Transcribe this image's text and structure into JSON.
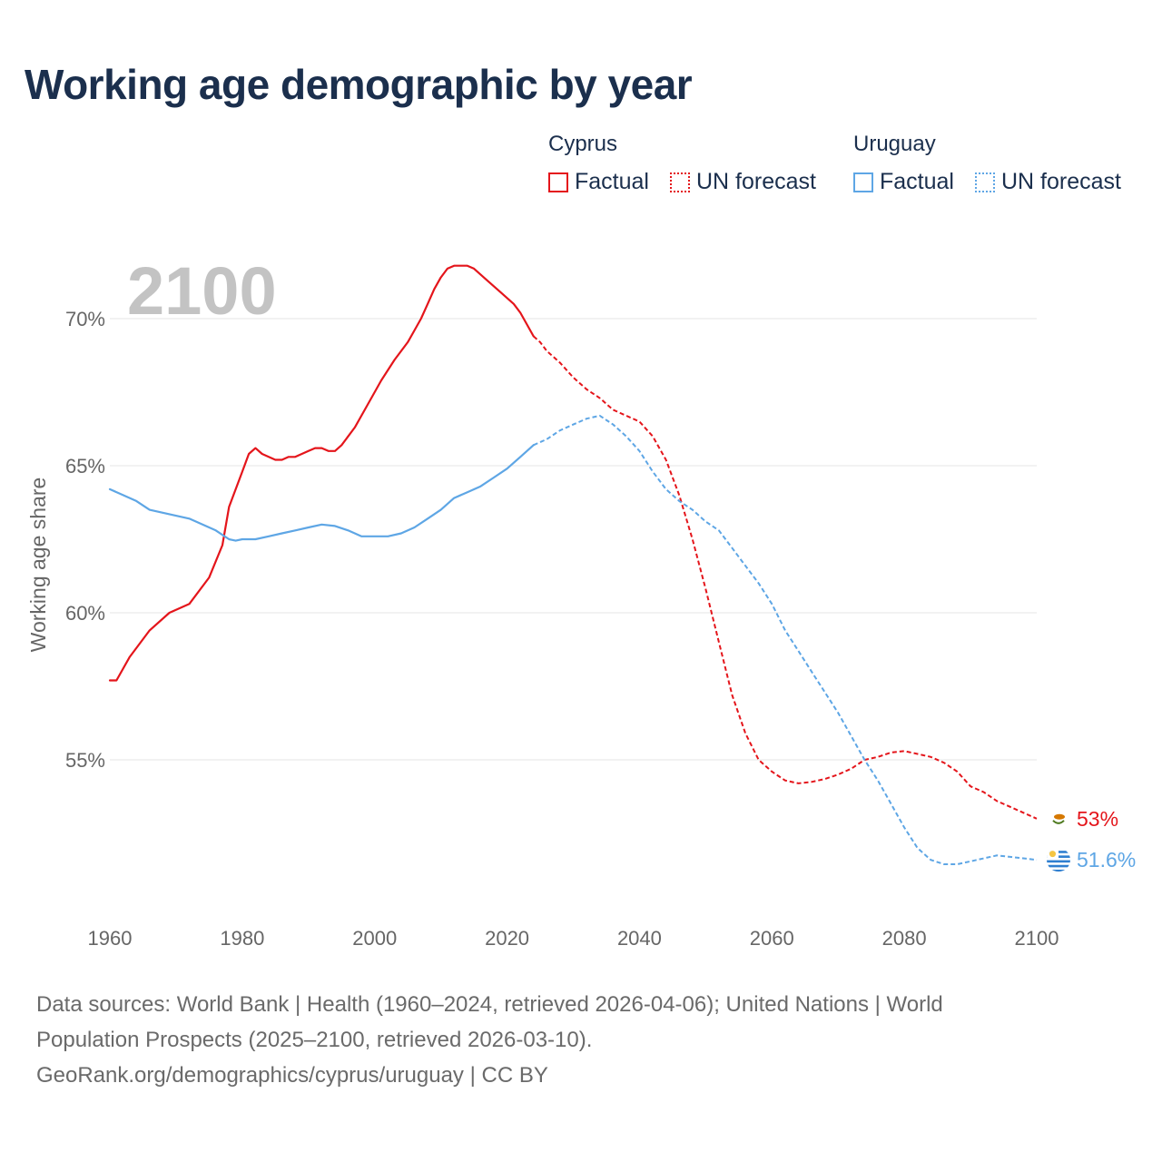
{
  "title": "Working age demographic by year",
  "year_label": "2100",
  "legend": {
    "groups": [
      {
        "country": "Cyprus",
        "factual": "Factual",
        "forecast": "UN forecast",
        "color": "#e4151b"
      },
      {
        "country": "Uruguay",
        "factual": "Factual",
        "forecast": "UN forecast",
        "color": "#5ea6e5"
      }
    ]
  },
  "footer": {
    "line1": "Data sources: World Bank | Health (1960–2024, retrieved 2026-04-06); United Nations | World",
    "line2": "Population Prospects (2025–2100, retrieved 2026-03-10).",
    "line3": "GeoRank.org/demographics/cyprus/uruguay | CC BY"
  },
  "chart_data": {
    "type": "line",
    "title": "Working age demographic by year",
    "xlabel": "",
    "ylabel": "Working age share",
    "xlim": [
      1960,
      2100
    ],
    "ylim": [
      50.5,
      72.5
    ],
    "x_ticks": [
      1960,
      1980,
      2000,
      2020,
      2040,
      2060,
      2080,
      2100
    ],
    "x_tick_labels": [
      "1960",
      "1980",
      "2000",
      "2020",
      "2040",
      "2060",
      "2080",
      "2100"
    ],
    "y_ticks": [
      55,
      60,
      65,
      70
    ],
    "y_tick_labels": [
      "55%",
      "60%",
      "65%",
      "70%"
    ],
    "grid": true,
    "forecast_start": 2024,
    "series": [
      {
        "name": "Cyprus",
        "color": "#e4151b",
        "end_label": "53%",
        "points": [
          [
            1960,
            57.7
          ],
          [
            1961,
            57.7
          ],
          [
            1963,
            58.5
          ],
          [
            1966,
            59.4
          ],
          [
            1969,
            60.0
          ],
          [
            1972,
            60.3
          ],
          [
            1975,
            61.2
          ],
          [
            1977,
            62.3
          ],
          [
            1978,
            63.6
          ],
          [
            1980,
            64.8
          ],
          [
            1981,
            65.4
          ],
          [
            1982,
            65.6
          ],
          [
            1983,
            65.4
          ],
          [
            1985,
            65.2
          ],
          [
            1986,
            65.2
          ],
          [
            1987,
            65.3
          ],
          [
            1988,
            65.3
          ],
          [
            1990,
            65.5
          ],
          [
            1991,
            65.6
          ],
          [
            1992,
            65.6
          ],
          [
            1993,
            65.5
          ],
          [
            1994,
            65.5
          ],
          [
            1995,
            65.7
          ],
          [
            1997,
            66.3
          ],
          [
            1999,
            67.1
          ],
          [
            2001,
            67.9
          ],
          [
            2003,
            68.6
          ],
          [
            2005,
            69.2
          ],
          [
            2006,
            69.6
          ],
          [
            2007,
            70.0
          ],
          [
            2008,
            70.5
          ],
          [
            2009,
            71.0
          ],
          [
            2010,
            71.4
          ],
          [
            2011,
            71.7
          ],
          [
            2012,
            71.8
          ],
          [
            2014,
            71.8
          ],
          [
            2015,
            71.7
          ],
          [
            2017,
            71.3
          ],
          [
            2019,
            70.9
          ],
          [
            2021,
            70.5
          ],
          [
            2022,
            70.2
          ],
          [
            2023,
            69.8
          ],
          [
            2024,
            69.4
          ],
          [
            2025,
            69.2
          ],
          [
            2026,
            68.9
          ],
          [
            2028,
            68.5
          ],
          [
            2030,
            68.0
          ],
          [
            2032,
            67.6
          ],
          [
            2034,
            67.3
          ],
          [
            2036,
            66.9
          ],
          [
            2038,
            66.7
          ],
          [
            2040,
            66.5
          ],
          [
            2042,
            66.0
          ],
          [
            2044,
            65.2
          ],
          [
            2046,
            64.0
          ],
          [
            2048,
            62.5
          ],
          [
            2050,
            60.8
          ],
          [
            2052,
            59.0
          ],
          [
            2054,
            57.2
          ],
          [
            2056,
            55.9
          ],
          [
            2058,
            55.0
          ],
          [
            2060,
            54.6
          ],
          [
            2062,
            54.3
          ],
          [
            2064,
            54.2
          ],
          [
            2066,
            54.25
          ],
          [
            2068,
            54.35
          ],
          [
            2070,
            54.5
          ],
          [
            2072,
            54.7
          ],
          [
            2074,
            55.0
          ],
          [
            2076,
            55.1
          ],
          [
            2078,
            55.25
          ],
          [
            2080,
            55.3
          ],
          [
            2082,
            55.2
          ],
          [
            2084,
            55.1
          ],
          [
            2086,
            54.9
          ],
          [
            2088,
            54.6
          ],
          [
            2090,
            54.1
          ],
          [
            2092,
            53.9
          ],
          [
            2094,
            53.6
          ],
          [
            2096,
            53.4
          ],
          [
            2098,
            53.2
          ],
          [
            2100,
            53.0
          ]
        ]
      },
      {
        "name": "Uruguay",
        "color": "#5ea6e5",
        "end_label": "51.6%",
        "points": [
          [
            1960,
            64.2
          ],
          [
            1962,
            64.0
          ],
          [
            1964,
            63.8
          ],
          [
            1966,
            63.5
          ],
          [
            1968,
            63.4
          ],
          [
            1970,
            63.3
          ],
          [
            1972,
            63.2
          ],
          [
            1974,
            63.0
          ],
          [
            1976,
            62.8
          ],
          [
            1978,
            62.5
          ],
          [
            1979,
            62.45
          ],
          [
            1980,
            62.5
          ],
          [
            1982,
            62.5
          ],
          [
            1984,
            62.6
          ],
          [
            1986,
            62.7
          ],
          [
            1988,
            62.8
          ],
          [
            1990,
            62.9
          ],
          [
            1992,
            63.0
          ],
          [
            1994,
            62.95
          ],
          [
            1996,
            62.8
          ],
          [
            1998,
            62.6
          ],
          [
            2000,
            62.6
          ],
          [
            2002,
            62.6
          ],
          [
            2004,
            62.7
          ],
          [
            2006,
            62.9
          ],
          [
            2008,
            63.2
          ],
          [
            2010,
            63.5
          ],
          [
            2012,
            63.9
          ],
          [
            2014,
            64.1
          ],
          [
            2016,
            64.3
          ],
          [
            2018,
            64.6
          ],
          [
            2020,
            64.9
          ],
          [
            2022,
            65.3
          ],
          [
            2024,
            65.7
          ],
          [
            2026,
            65.9
          ],
          [
            2028,
            66.2
          ],
          [
            2030,
            66.4
          ],
          [
            2032,
            66.6
          ],
          [
            2034,
            66.7
          ],
          [
            2036,
            66.4
          ],
          [
            2038,
            66.0
          ],
          [
            2040,
            65.5
          ],
          [
            2042,
            64.8
          ],
          [
            2044,
            64.2
          ],
          [
            2046,
            63.8
          ],
          [
            2048,
            63.5
          ],
          [
            2050,
            63.1
          ],
          [
            2052,
            62.8
          ],
          [
            2054,
            62.2
          ],
          [
            2056,
            61.6
          ],
          [
            2058,
            61.0
          ],
          [
            2060,
            60.3
          ],
          [
            2062,
            59.4
          ],
          [
            2064,
            58.7
          ],
          [
            2066,
            58.0
          ],
          [
            2068,
            57.3
          ],
          [
            2070,
            56.6
          ],
          [
            2072,
            55.8
          ],
          [
            2074,
            55.0
          ],
          [
            2076,
            54.3
          ],
          [
            2078,
            53.5
          ],
          [
            2080,
            52.7
          ],
          [
            2082,
            52.0
          ],
          [
            2084,
            51.6
          ],
          [
            2086,
            51.45
          ],
          [
            2088,
            51.45
          ],
          [
            2090,
            51.55
          ],
          [
            2092,
            51.65
          ],
          [
            2094,
            51.75
          ],
          [
            2096,
            51.7
          ],
          [
            2098,
            51.65
          ],
          [
            2100,
            51.6
          ]
        ]
      }
    ]
  }
}
